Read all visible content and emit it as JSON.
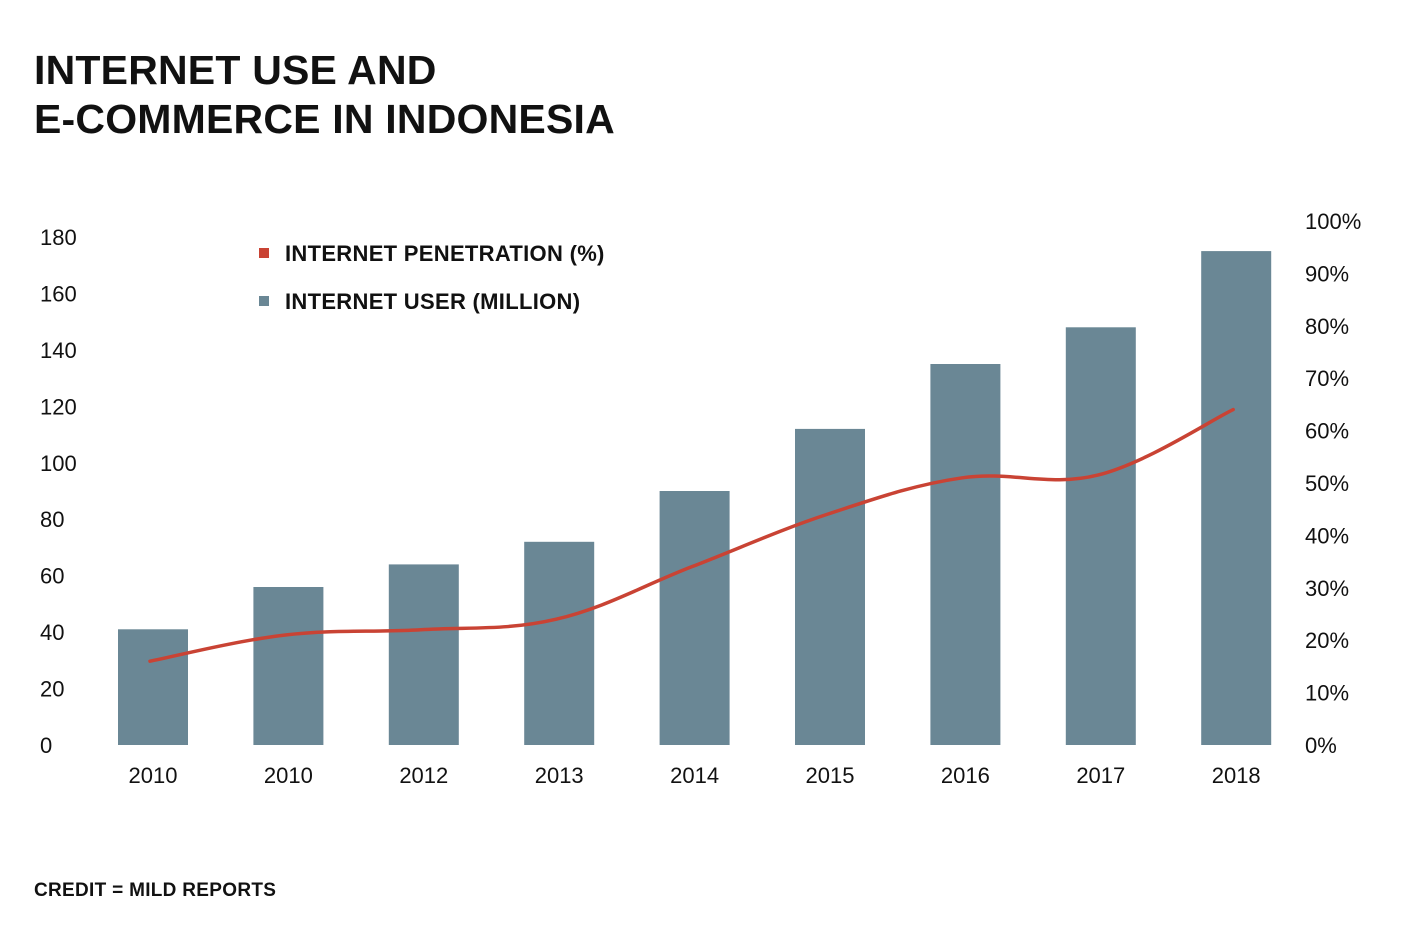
{
  "title": {
    "line1": "INTERNET USE AND",
    "line2": "E-COMMERCE IN INDONESIA"
  },
  "credit": "CREDIT = MILD REPORTS",
  "colors": {
    "bar": "#6a8795",
    "line": "#c94334",
    "text": "#111111"
  },
  "chart_data": {
    "type": "bar",
    "title": "INTERNET USE AND E-COMMERCE IN INDONESIA",
    "categories": [
      "2010",
      "2010",
      "2012",
      "2013",
      "2014",
      "2015",
      "2016",
      "2017",
      "2018"
    ],
    "series": [
      {
        "name": "INTERNET USER (MILLION)",
        "type": "bar",
        "axis": "left",
        "values": [
          41,
          56,
          64,
          72,
          90,
          112,
          135,
          148,
          175
        ]
      },
      {
        "name": "INTERNET PENETRATION (%)",
        "type": "line",
        "axis": "right",
        "values": [
          16,
          21,
          22,
          24,
          34,
          44,
          51,
          51.5,
          64
        ]
      }
    ],
    "y_left": {
      "ylim": [
        0,
        180
      ],
      "ticks": [
        "0",
        "20",
        "40",
        "60",
        "80",
        "100",
        "120",
        "140",
        "160",
        "180"
      ]
    },
    "y_right": {
      "ylim": [
        0,
        100
      ],
      "ticks": [
        "0%",
        "10%",
        "20%",
        "30%",
        "40%",
        "50%",
        "60%",
        "70%",
        "80%",
        "90%",
        "100%"
      ]
    },
    "legend": {
      "placement": "top-left",
      "entries": [
        "INTERNET PENETRATION (%)",
        "INTERNET USER (MILLION)"
      ]
    },
    "grid": false,
    "xlabel": "",
    "ylabel": ""
  }
}
